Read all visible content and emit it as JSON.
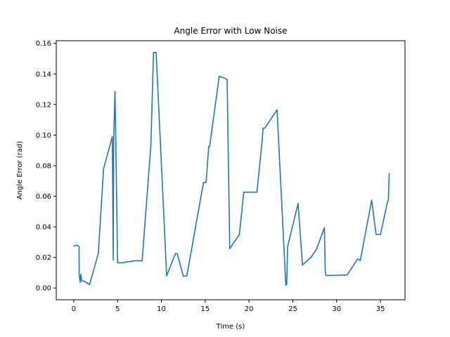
{
  "chart_data": {
    "type": "line",
    "title": "Angle Error with Low Noise",
    "xlabel": "Time (s)",
    "ylabel": "Angle Error (rad)",
    "xlim": [
      -2.0,
      37.8
    ],
    "ylim": [
      -0.0077,
      0.1617
    ],
    "xticks": [
      0,
      5,
      10,
      15,
      20,
      25,
      30,
      35
    ],
    "xtick_labels": [
      "0",
      "5",
      "10",
      "15",
      "20",
      "25",
      "30",
      "35"
    ],
    "yticks": [
      0.0,
      0.02,
      0.04,
      0.06,
      0.08,
      0.1,
      0.12,
      0.14,
      0.16
    ],
    "ytick_labels": [
      "0.00",
      "0.02",
      "0.04",
      "0.06",
      "0.08",
      "0.10",
      "0.12",
      "0.14",
      "0.16"
    ],
    "grid": false,
    "series": [
      {
        "color": "#1f77b4",
        "x": [
          0.0,
          0.4,
          0.6,
          0.62,
          0.75,
          0.8,
          0.9,
          1.0,
          1.2,
          1.8,
          2.8,
          3.4,
          4.4,
          4.5,
          4.55,
          4.7,
          4.8,
          5.0,
          5.3,
          5.6,
          6.0,
          7.0,
          7.8,
          8.8,
          9.1,
          9.3,
          9.4,
          10.6,
          11.6,
          11.8,
          12.5,
          12.9,
          14.8,
          15.1,
          15.4,
          15.5,
          16.6,
          17.5,
          17.8,
          18.9,
          19.4,
          20.9,
          21.5,
          21.6,
          21.8,
          23.2,
          24.2,
          24.3,
          24.4,
          25.6,
          26.1,
          27.1,
          27.7,
          28.6,
          28.7,
          28.8,
          29.0,
          31.2,
          32.4,
          32.7,
          34.0,
          34.5,
          35.0,
          35.8,
          35.9,
          36.0
        ],
        "y": [
          0.0275,
          0.028,
          0.027,
          0.008,
          0.0035,
          0.009,
          0.005,
          0.0045,
          0.0045,
          0.0022,
          0.0225,
          0.078,
          0.099,
          0.0183,
          0.0955,
          0.1285,
          0.0955,
          0.0165,
          0.0165,
          0.0165,
          0.017,
          0.0178,
          0.0178,
          0.0935,
          0.154,
          0.154,
          0.154,
          0.008,
          0.0225,
          0.0225,
          0.0078,
          0.0078,
          0.069,
          0.069,
          0.0925,
          0.0925,
          0.1385,
          0.1365,
          0.0258,
          0.035,
          0.0627,
          0.0627,
          0.0965,
          0.1045,
          0.1045,
          0.1165,
          0.0018,
          0.0025,
          0.027,
          0.0553,
          0.015,
          0.0203,
          0.0253,
          0.0395,
          0.0105,
          0.0082,
          0.0082,
          0.0085,
          0.019,
          0.018,
          0.0575,
          0.035,
          0.035,
          0.0563,
          0.0575,
          0.0748
        ]
      }
    ]
  }
}
